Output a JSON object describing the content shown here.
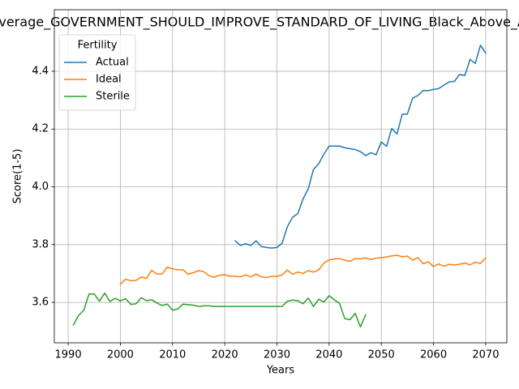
{
  "chart_data": {
    "type": "line",
    "title": "Average_GOVERNMENT_SHOULD_IMPROVE_STANDARD_OF_LIVING_Black_Above_Average",
    "xlabel": "Years",
    "ylabel": "Score(1-5)",
    "xlim": [
      1987.35,
      2074.05
    ],
    "ylim": [
      3.46,
      4.613
    ],
    "xticks": [
      1990,
      2000,
      2010,
      2020,
      2030,
      2040,
      2050,
      2060,
      2070
    ],
    "yticks": [
      3.6,
      3.8,
      {
        "value": 4,
        "label": "4.0"
      },
      4.2,
      4.4
    ],
    "grid": true,
    "legend_title": "Fertility",
    "legend_loc": "upper left",
    "series": [
      {
        "name": "Actual",
        "color": "#1f77b4",
        "x": [
          2022,
          2023,
          2024,
          2025,
          2026,
          2027,
          2028,
          2029,
          2030,
          2031,
          2032,
          2033,
          2034,
          2035,
          2036,
          2037,
          2038,
          2039,
          2040,
          2041,
          2042,
          2043,
          2044,
          2045,
          2046,
          2047,
          2048,
          2049,
          2050,
          2051,
          2052,
          2053,
          2054,
          2055,
          2056,
          2057,
          2058,
          2059,
          2060,
          2061,
          2062,
          2063,
          2064,
          2065,
          2066,
          2067,
          2068,
          2069,
          2070
        ],
        "values": [
          3.813,
          3.797,
          3.803,
          3.797,
          3.813,
          3.793,
          3.79,
          3.788,
          3.79,
          3.805,
          3.862,
          3.895,
          3.907,
          3.958,
          3.993,
          4.06,
          4.08,
          4.113,
          4.141,
          4.141,
          4.141,
          4.135,
          4.132,
          4.129,
          4.122,
          4.108,
          4.118,
          4.111,
          4.155,
          4.14,
          4.202,
          4.183,
          4.251,
          4.252,
          4.307,
          4.316,
          4.333,
          4.333,
          4.337,
          4.34,
          4.352,
          4.363,
          4.365,
          4.389,
          4.385,
          4.441,
          4.427,
          4.49,
          4.463
        ]
      },
      {
        "name": "Ideal",
        "color": "#ff7f0e",
        "x": [
          2000,
          2001,
          2002,
          2003,
          2004,
          2005,
          2006,
          2007,
          2008,
          2009,
          2010,
          2011,
          2012,
          2013,
          2014,
          2015,
          2016,
          2017,
          2018,
          2019,
          2020,
          2021,
          2022,
          2023,
          2024,
          2025,
          2026,
          2027,
          2028,
          2029,
          2030,
          2031,
          2032,
          2033,
          2034,
          2035,
          2036,
          2037,
          2038,
          2039,
          2040,
          2041,
          2042,
          2043,
          2044,
          2045,
          2046,
          2047,
          2048,
          2049,
          2050,
          2051,
          2052,
          2053,
          2054,
          2055,
          2056,
          2057,
          2058,
          2059,
          2060,
          2061,
          2062,
          2063,
          2064,
          2065,
          2066,
          2067,
          2068,
          2069,
          2070
        ],
        "values": [
          3.663,
          3.68,
          3.675,
          3.676,
          3.688,
          3.683,
          3.711,
          3.698,
          3.698,
          3.722,
          3.716,
          3.713,
          3.713,
          3.697,
          3.703,
          3.71,
          3.706,
          3.692,
          3.687,
          3.694,
          3.696,
          3.69,
          3.691,
          3.688,
          3.695,
          3.688,
          3.698,
          3.688,
          3.686,
          3.69,
          3.69,
          3.695,
          3.712,
          3.697,
          3.705,
          3.7,
          3.71,
          3.705,
          3.712,
          3.736,
          3.747,
          3.75,
          3.752,
          3.746,
          3.742,
          3.752,
          3.75,
          3.754,
          3.748,
          3.753,
          3.755,
          3.757,
          3.761,
          3.763,
          3.758,
          3.76,
          3.746,
          3.755,
          3.734,
          3.74,
          3.724,
          3.733,
          3.725,
          3.732,
          3.729,
          3.732,
          3.736,
          3.73,
          3.739,
          3.735,
          3.754
        ]
      },
      {
        "name": "Sterile",
        "color": "#2ca02c",
        "x": [
          1991,
          1992,
          1993,
          1994,
          1995,
          1996,
          1997,
          1998,
          1999,
          2000,
          2001,
          2002,
          2003,
          2004,
          2005,
          2006,
          2007,
          2008,
          2009,
          2010,
          2011,
          2012,
          2013,
          2014,
          2015,
          2016,
          2017,
          2018,
          2019,
          2020,
          2021,
          2022,
          2023,
          2024,
          2025,
          2026,
          2027,
          2028,
          2029,
          2030,
          2031,
          2032,
          2033,
          2034,
          2035,
          2036,
          2037,
          2038,
          2039,
          2040,
          2041,
          2042,
          2043,
          2044,
          2045,
          2046,
          2047
        ],
        "values": [
          3.522,
          3.555,
          3.573,
          3.629,
          3.629,
          3.604,
          3.632,
          3.603,
          3.614,
          3.605,
          3.613,
          3.593,
          3.595,
          3.616,
          3.606,
          3.609,
          3.598,
          3.589,
          3.594,
          3.573,
          3.577,
          3.594,
          3.592,
          3.59,
          3.586,
          3.588,
          3.588,
          3.586,
          3.586,
          3.586,
          3.586,
          3.586,
          3.586,
          3.586,
          3.586,
          3.586,
          3.586,
          3.586,
          3.586,
          3.586,
          3.586,
          3.604,
          3.608,
          3.606,
          3.595,
          3.615,
          3.586,
          3.611,
          3.601,
          3.623,
          3.609,
          3.596,
          3.544,
          3.54,
          3.562,
          3.515,
          3.557
        ]
      }
    ]
  }
}
